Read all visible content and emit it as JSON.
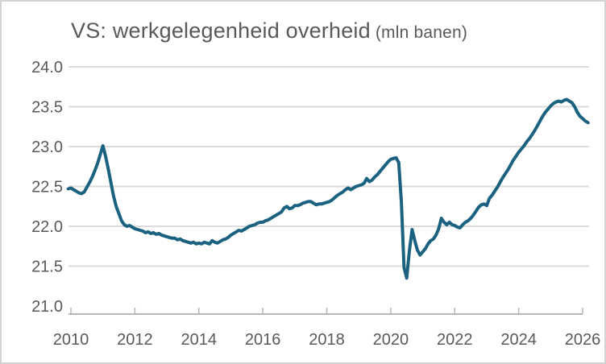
{
  "title": {
    "main": "VS: werkgelegenheid overheid",
    "unit": "(mln banen)"
  },
  "chart_data": {
    "type": "line",
    "title": "VS: werkgelegenheid overheid (mln banen)",
    "xlabel": "",
    "ylabel": "",
    "ylim": [
      21.0,
      24.0
    ],
    "xlim": [
      2009.75,
      2026.4
    ],
    "grid": "horizontal",
    "legend": "none",
    "x_ticks": [
      2010,
      2012,
      2014,
      2016,
      2018,
      2020,
      2022,
      2024,
      2026
    ],
    "x_tick_labels": [
      "2010",
      "2012",
      "2014",
      "2016",
      "2018",
      "2020",
      "2022",
      "2024",
      "2026"
    ],
    "y_ticks": [
      21.0,
      21.5,
      22.0,
      22.5,
      23.0,
      23.5,
      24.0
    ],
    "y_tick_labels": [
      "21.0",
      "21.5",
      "22.0",
      "22.5",
      "23.0",
      "23.5",
      "24.0"
    ],
    "line_color": "#1a6280",
    "grid_color": "#dcdcdc",
    "axis_color": "#b7b7b7",
    "text_color": "#595959",
    "series": [
      {
        "name": "werkgelegenheid overheid VS (mln banen)",
        "x_start_decimal_year": 2009.9167,
        "x_step_years": 0.0833333,
        "values": [
          22.47,
          22.48,
          22.46,
          22.44,
          22.42,
          22.41,
          22.43,
          22.49,
          22.55,
          22.62,
          22.7,
          22.79,
          22.9,
          23.01,
          22.88,
          22.72,
          22.55,
          22.38,
          22.25,
          22.16,
          22.07,
          22.02,
          22.0,
          22.01,
          21.99,
          21.97,
          21.96,
          21.95,
          21.94,
          21.92,
          21.93,
          21.91,
          21.92,
          21.9,
          21.91,
          21.89,
          21.88,
          21.87,
          21.86,
          21.85,
          21.85,
          21.83,
          21.84,
          21.82,
          21.81,
          21.8,
          21.79,
          21.8,
          21.78,
          21.79,
          21.78,
          21.8,
          21.79,
          21.78,
          21.82,
          21.8,
          21.79,
          21.81,
          21.83,
          21.84,
          21.86,
          21.89,
          21.91,
          21.93,
          21.95,
          21.94,
          21.96,
          21.98,
          22.0,
          22.01,
          22.02,
          22.04,
          22.05,
          22.05,
          22.07,
          22.08,
          22.1,
          22.12,
          22.14,
          22.16,
          22.18,
          22.23,
          22.25,
          22.22,
          22.23,
          22.26,
          22.26,
          22.27,
          22.29,
          22.3,
          22.31,
          22.31,
          22.29,
          22.27,
          22.28,
          22.28,
          22.29,
          22.3,
          22.31,
          22.33,
          22.36,
          22.39,
          22.41,
          22.43,
          22.46,
          22.48,
          22.46,
          22.48,
          22.5,
          22.51,
          22.52,
          22.54,
          22.6,
          22.56,
          22.58,
          22.62,
          22.65,
          22.69,
          22.73,
          22.77,
          22.81,
          22.84,
          22.85,
          22.86,
          22.8,
          22.3,
          21.48,
          21.35,
          21.7,
          21.96,
          21.82,
          21.7,
          21.64,
          21.68,
          21.72,
          21.78,
          21.82,
          21.84,
          21.89,
          21.97,
          22.1,
          22.05,
          22.02,
          22.05,
          22.02,
          22.01,
          21.99,
          21.98,
          22.02,
          22.05,
          22.07,
          22.1,
          22.14,
          22.19,
          22.24,
          22.27,
          22.28,
          22.26,
          22.35,
          22.39,
          22.44,
          22.49,
          22.55,
          22.61,
          22.66,
          22.71,
          22.77,
          22.83,
          22.88,
          22.93,
          22.97,
          23.01,
          23.06,
          23.1,
          23.15,
          23.2,
          23.26,
          23.32,
          23.38,
          23.43,
          23.47,
          23.51,
          23.54,
          23.56,
          23.57,
          23.56,
          23.58,
          23.59,
          23.57,
          23.55,
          23.5,
          23.43,
          23.38,
          23.35,
          23.32,
          23.3
        ]
      }
    ]
  }
}
